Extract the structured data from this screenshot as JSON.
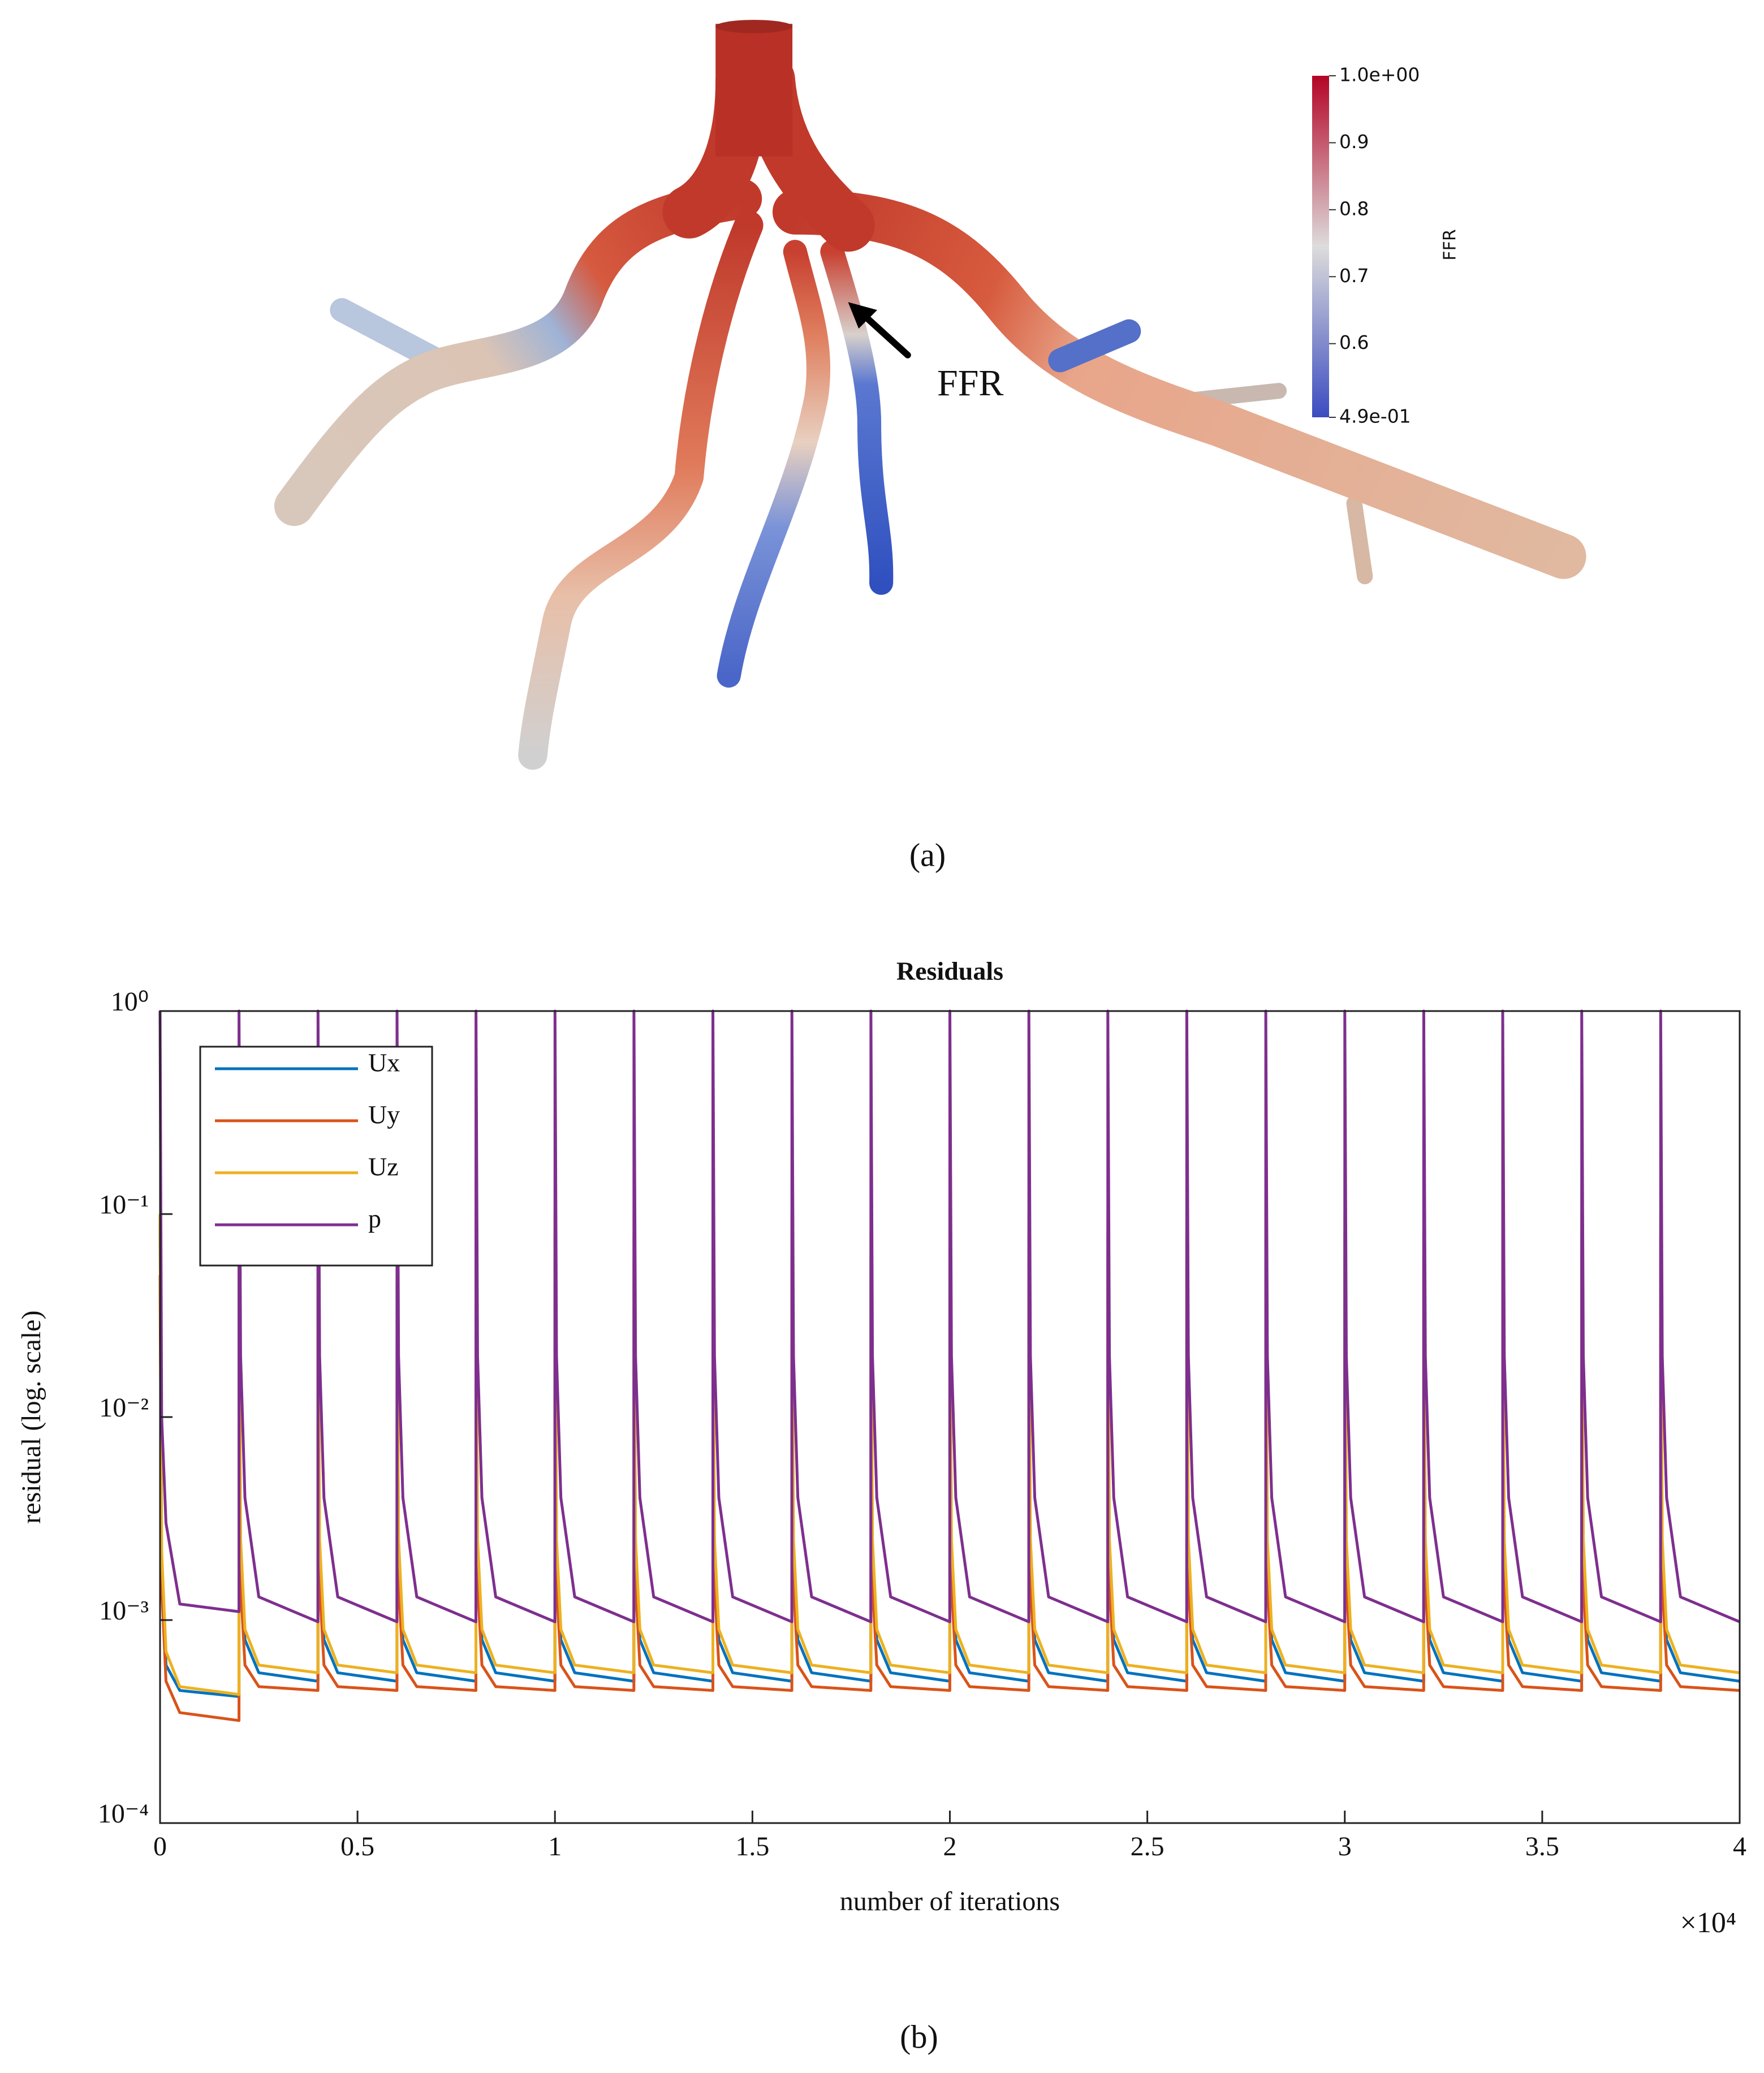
{
  "chart_data": [
    {
      "type": "colorbar",
      "label": "FFR",
      "annotation": "FFR",
      "caption": "(a)",
      "clim": [
        0.49,
        1.0
      ],
      "colormap": [
        "#3b4cc0",
        "#dddcdc",
        "#b40426"
      ],
      "ticks": [
        {
          "value": 1.0,
          "label": "1.0e+00"
        },
        0.9,
        0.8,
        0.7,
        0.6,
        {
          "value": 0.49,
          "label": "4.9e-01"
        }
      ]
    },
    {
      "type": "line",
      "title": "Residuals",
      "x_label": "number of iterations",
      "x_exponent_label": "×10⁴",
      "y_label": "residual (log. scale)",
      "caption": "(b)",
      "log_y": true,
      "legend": "upper left",
      "xlim": [
        0,
        40000
      ],
      "xticks": [
        0,
        {
          "value": 5000,
          "label": "0.5"
        },
        {
          "value": 10000,
          "label": "1"
        },
        {
          "value": 15000,
          "label": "1.5"
        },
        {
          "value": 20000,
          "label": "2"
        },
        {
          "value": 25000,
          "label": "2.5"
        },
        {
          "value": 30000,
          "label": "3"
        },
        {
          "value": 35000,
          "label": "3.5"
        },
        {
          "value": 40000,
          "label": "4"
        }
      ],
      "ylim": [
        0.0001,
        1
      ],
      "yticks": [
        {
          "value": 1,
          "label": "10⁰"
        },
        {
          "value": 0.1,
          "label": "10⁻¹"
        },
        {
          "value": 0.01,
          "label": "10⁻²"
        },
        {
          "value": 0.001,
          "label": "10⁻³"
        },
        {
          "value": 0.0001,
          "label": "10⁻⁴"
        }
      ],
      "x": [
        0,
        40,
        150,
        500,
        1999,
        2000,
        2040,
        2150,
        2500,
        3999,
        4000,
        4040,
        4150,
        4500,
        5999,
        6000,
        6040,
        6150,
        6500,
        7999,
        8000,
        8040,
        8150,
        8500,
        9999,
        10000,
        10040,
        10150,
        10500,
        11999,
        12000,
        12040,
        12150,
        12500,
        13999,
        14000,
        14040,
        14150,
        14500,
        15999,
        16000,
        16040,
        16150,
        16500,
        17999,
        18000,
        18040,
        18150,
        18500,
        19999,
        20000,
        20040,
        20150,
        20500,
        21999,
        22000,
        22040,
        22150,
        22500,
        23999,
        24000,
        24040,
        24150,
        24500,
        25999,
        26000,
        26040,
        26150,
        26500,
        27999,
        28000,
        28040,
        28150,
        28500,
        29999,
        30000,
        30040,
        30150,
        30500,
        31999,
        32000,
        32040,
        32150,
        32500,
        33999,
        34000,
        34040,
        34150,
        34500,
        35999,
        36000,
        36040,
        36150,
        36500,
        37999,
        38000,
        38040,
        38150,
        38500,
        39999
      ],
      "series": [
        {
          "name": "Ux",
          "color": "#0072bd",
          "values": [
            0.1,
            0.002,
            0.0006,
            0.00045,
            0.00042,
            0.08,
            0.002,
            0.0008,
            0.00055,
            0.0005,
            0.08,
            0.002,
            0.0008,
            0.00055,
            0.0005,
            0.08,
            0.002,
            0.0008,
            0.00055,
            0.0005,
            0.08,
            0.002,
            0.0008,
            0.00055,
            0.0005,
            0.08,
            0.002,
            0.0008,
            0.00055,
            0.0005,
            0.08,
            0.002,
            0.0008,
            0.00055,
            0.0005,
            0.08,
            0.002,
            0.0008,
            0.00055,
            0.0005,
            0.08,
            0.002,
            0.0008,
            0.00055,
            0.0005,
            0.08,
            0.002,
            0.0008,
            0.00055,
            0.0005,
            0.08,
            0.002,
            0.0008,
            0.00055,
            0.0005,
            0.08,
            0.002,
            0.0008,
            0.00055,
            0.0005,
            0.08,
            0.002,
            0.0008,
            0.00055,
            0.0005,
            0.08,
            0.002,
            0.0008,
            0.00055,
            0.0005,
            0.08,
            0.002,
            0.0008,
            0.00055,
            0.0005,
            0.08,
            0.002,
            0.0008,
            0.00055,
            0.0005,
            0.08,
            0.002,
            0.0008,
            0.00055,
            0.0005,
            0.08,
            0.002,
            0.0008,
            0.00055,
            0.0005,
            0.08,
            0.002,
            0.0008,
            0.00055,
            0.0005,
            0.08,
            0.002,
            0.0008,
            0.00055,
            0.0005
          ]
        },
        {
          "name": "Uy",
          "color": "#d95319",
          "values": [
            0.05,
            0.0015,
            0.0005,
            0.00035,
            0.00032,
            0.06,
            0.0015,
            0.0006,
            0.00047,
            0.00045,
            0.06,
            0.0015,
            0.0006,
            0.00047,
            0.00045,
            0.06,
            0.0015,
            0.0006,
            0.00047,
            0.00045,
            0.06,
            0.0015,
            0.0006,
            0.00047,
            0.00045,
            0.06,
            0.0015,
            0.0006,
            0.00047,
            0.00045,
            0.06,
            0.0015,
            0.0006,
            0.00047,
            0.00045,
            0.06,
            0.0015,
            0.0006,
            0.00047,
            0.00045,
            0.06,
            0.0015,
            0.0006,
            0.00047,
            0.00045,
            0.06,
            0.0015,
            0.0006,
            0.00047,
            0.00045,
            0.06,
            0.0015,
            0.0006,
            0.00047,
            0.00045,
            0.06,
            0.0015,
            0.0006,
            0.00047,
            0.00045,
            0.06,
            0.0015,
            0.0006,
            0.00047,
            0.00045,
            0.06,
            0.0015,
            0.0006,
            0.00047,
            0.00045,
            0.06,
            0.0015,
            0.0006,
            0.00047,
            0.00045,
            0.06,
            0.0015,
            0.0006,
            0.00047,
            0.00045,
            0.06,
            0.0015,
            0.0006,
            0.00047,
            0.00045,
            0.06,
            0.0015,
            0.0006,
            0.00047,
            0.00045,
            0.06,
            0.0015,
            0.0006,
            0.00047,
            0.00045,
            0.06,
            0.0015,
            0.0006,
            0.00047,
            0.00045
          ]
        },
        {
          "name": "Uz",
          "color": "#edb120",
          "values": [
            0.1,
            0.0022,
            0.0007,
            0.00047,
            0.00043,
            0.1,
            0.0025,
            0.0009,
            0.0006,
            0.00055,
            0.1,
            0.0025,
            0.0009,
            0.0006,
            0.00055,
            0.1,
            0.0025,
            0.0009,
            0.0006,
            0.00055,
            0.1,
            0.0025,
            0.0009,
            0.0006,
            0.00055,
            0.1,
            0.0025,
            0.0009,
            0.0006,
            0.00055,
            0.1,
            0.0025,
            0.0009,
            0.0006,
            0.00055,
            0.1,
            0.0025,
            0.0009,
            0.0006,
            0.00055,
            0.1,
            0.0025,
            0.0009,
            0.0006,
            0.00055,
            0.1,
            0.0025,
            0.0009,
            0.0006,
            0.00055,
            0.1,
            0.0025,
            0.0009,
            0.0006,
            0.00055,
            0.1,
            0.0025,
            0.0009,
            0.0006,
            0.00055,
            0.1,
            0.0025,
            0.0009,
            0.0006,
            0.00055,
            0.1,
            0.0025,
            0.0009,
            0.0006,
            0.00055,
            0.1,
            0.0025,
            0.0009,
            0.0006,
            0.00055,
            0.1,
            0.0025,
            0.0009,
            0.0006,
            0.00055,
            0.1,
            0.0025,
            0.0009,
            0.0006,
            0.00055,
            0.1,
            0.0025,
            0.0009,
            0.0006,
            0.00055,
            0.1,
            0.0025,
            0.0009,
            0.0006,
            0.00055,
            0.1,
            0.0025,
            0.0009,
            0.0006,
            0.00055
          ]
        },
        {
          "name": "p",
          "color": "#7e2f8e",
          "values": [
            1,
            0.01,
            0.003,
            0.0012,
            0.0011,
            1,
            0.02,
            0.004,
            0.0013,
            0.00098,
            1,
            0.02,
            0.004,
            0.0013,
            0.00098,
            1,
            0.02,
            0.004,
            0.0013,
            0.00098,
            1,
            0.02,
            0.004,
            0.0013,
            0.00098,
            1,
            0.02,
            0.004,
            0.0013,
            0.00098,
            1,
            0.02,
            0.004,
            0.0013,
            0.00098,
            1,
            0.02,
            0.004,
            0.0013,
            0.00098,
            1,
            0.02,
            0.004,
            0.0013,
            0.00098,
            1,
            0.02,
            0.004,
            0.0013,
            0.00098,
            1,
            0.02,
            0.004,
            0.0013,
            0.00098,
            1,
            0.02,
            0.004,
            0.0013,
            0.00098,
            1,
            0.02,
            0.004,
            0.0013,
            0.00098,
            1,
            0.02,
            0.004,
            0.0013,
            0.00098,
            1,
            0.02,
            0.004,
            0.0013,
            0.00098,
            1,
            0.02,
            0.004,
            0.0013,
            0.00098,
            1,
            0.02,
            0.004,
            0.0013,
            0.00098,
            1,
            0.02,
            0.004,
            0.0013,
            0.00098,
            1,
            0.02,
            0.004,
            0.0013,
            0.00098,
            1,
            0.02,
            0.004,
            0.0013,
            0.00098
          ]
        }
      ]
    }
  ]
}
